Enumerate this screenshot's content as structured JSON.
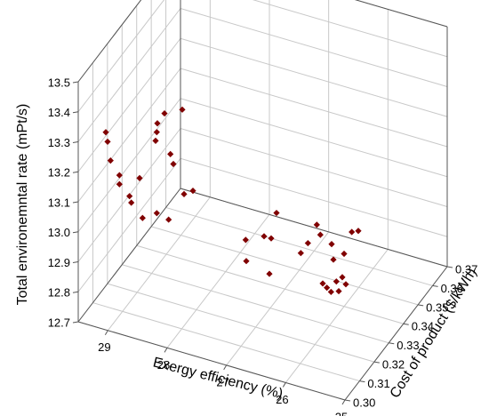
{
  "chart_data": {
    "type": "scatter3d",
    "x_label": "Exergy efficiency (%)",
    "y_label": "Cost of product ($/kWh)",
    "z_label": "Total environemntal rate (mPt/s)",
    "xlim": [
      29.5,
      25
    ],
    "xticks": [
      29,
      28,
      27,
      26,
      25
    ],
    "ylim": [
      0.3,
      0.37
    ],
    "yticks": [
      {
        "value": 0.3,
        "label": "0.30"
      },
      0.31,
      0.32,
      0.33,
      0.34,
      0.35,
      0.36,
      0.37
    ],
    "zlim": [
      12.7,
      13.5
    ],
    "zticks": [
      12.7,
      12.8,
      12.9,
      {
        "value": 13.0,
        "label": "13.0"
      },
      13.1,
      13.2,
      13.3,
      13.4,
      13.5
    ],
    "grid": true,
    "color": "#800000",
    "series": [
      {
        "x": [
          29.38,
          29.35,
          29.3,
          29.15,
          29.15,
          28.98,
          28.95,
          28.81,
          28.76,
          28.52,
          28.54,
          28.52,
          28.51,
          28.39,
          28.32,
          28.29,
          28.24,
          28.09,
          28.06,
          27.91,
          27.71,
          27.7,
          27.4,
          27.28,
          27.19,
          27.31,
          26.78,
          26.66,
          26.51,
          26.45,
          26.26,
          26.23,
          26.18,
          26.08,
          26.05,
          26.02,
          26.34,
          26.27,
          26.14,
          25.92,
          25.81,
          26.41
        ],
        "y": [
          0.314,
          0.314,
          0.314,
          0.314,
          0.314,
          0.314,
          0.314,
          0.314,
          0.314,
          0.314,
          0.314,
          0.314,
          0.314,
          0.314,
          0.314,
          0.314,
          0.314,
          0.314,
          0.314,
          0.314,
          0.342,
          0.342,
          0.342,
          0.342,
          0.342,
          0.342,
          0.342,
          0.342,
          0.342,
          0.342,
          0.342,
          0.342,
          0.342,
          0.342,
          0.342,
          0.342,
          0.342,
          0.342,
          0.342,
          0.342,
          0.342,
          0.342
        ],
        "z": [
          13.25,
          13.22,
          13.16,
          13.12,
          13.09,
          13.06,
          13.04,
          13.13,
          13.0,
          13.3,
          13.27,
          13.03,
          13.33,
          13.37,
          13.02,
          13.24,
          13.21,
          13.4,
          13.12,
          13.14,
          12.81,
          12.74,
          12.84,
          12.84,
          12.93,
          12.72,
          12.82,
          12.86,
          12.93,
          12.9,
          12.88,
          12.83,
          12.76,
          12.78,
          12.86,
          12.76,
          12.73,
          12.72,
          12.73,
          12.94,
          12.95,
          12.74
        ]
      }
    ]
  }
}
